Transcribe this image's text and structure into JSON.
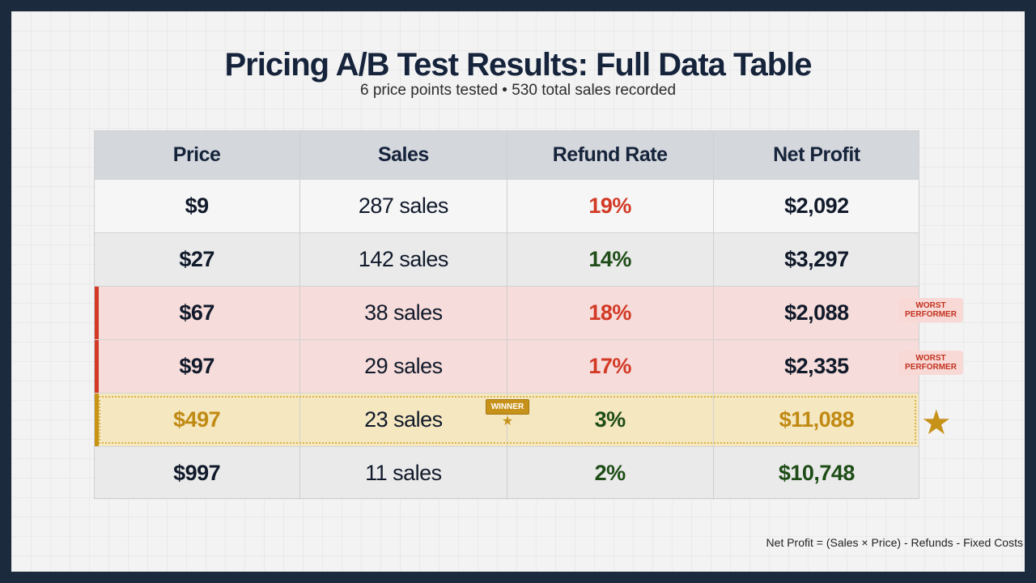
{
  "title": "Pricing A/B Test Results: Full Data Table",
  "subtitle": "6 price points tested • 530 total sales recorded",
  "badges": {
    "worst_line1": "WORST",
    "worst_line2": "PERFORMER",
    "winner": "WINNER"
  },
  "footnote": "Net Profit = (Sales × Price) - Refunds - Fixed Costs",
  "colors": {
    "red": "#d23a26",
    "green": "#1e4d17",
    "gold": "#c08a12",
    "dark": "#111a2b"
  },
  "chart_data": {
    "type": "table",
    "columns": [
      "Price",
      "Sales",
      "Refund Rate",
      "Net Profit"
    ],
    "rows": [
      {
        "price": "$9",
        "sales": "287 sales",
        "refund": "19%",
        "profit": "$2,092",
        "status": "normal",
        "refund_color": "red",
        "profit_color": "dark"
      },
      {
        "price": "$27",
        "sales": "142 sales",
        "refund": "14%",
        "profit": "$3,297",
        "status": "normal",
        "refund_color": "green",
        "profit_color": "dark"
      },
      {
        "price": "$67",
        "sales": "38 sales",
        "refund": "18%",
        "profit": "$2,088",
        "status": "worst",
        "refund_color": "red",
        "profit_color": "dark"
      },
      {
        "price": "$97",
        "sales": "29 sales",
        "refund": "17%",
        "profit": "$2,335",
        "status": "worst",
        "refund_color": "red",
        "profit_color": "dark"
      },
      {
        "price": "$497",
        "sales": "23 sales",
        "refund": "3%",
        "profit": "$11,088",
        "status": "winner",
        "refund_color": "green",
        "profit_color": "gold"
      },
      {
        "price": "$997",
        "sales": "11 sales",
        "refund": "2%",
        "profit": "$10,748",
        "status": "normal",
        "refund_color": "green",
        "profit_color": "green"
      }
    ]
  }
}
